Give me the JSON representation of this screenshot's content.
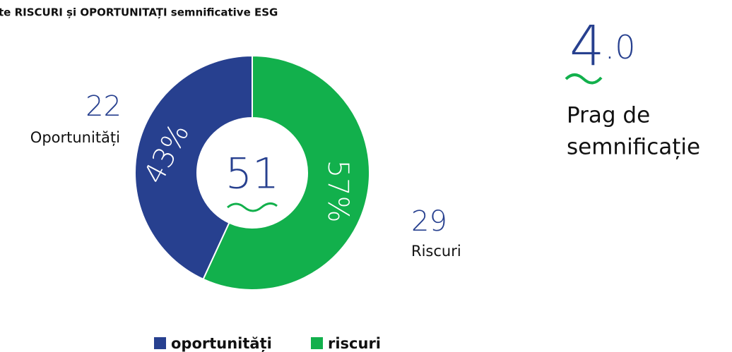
{
  "chart_data": {
    "type": "donut",
    "title": "te RISCURI și OPORTUNITAȚI semnificative ESG",
    "categories": [
      "oportunități",
      "riscuri"
    ],
    "labels": [
      "Oportunități",
      "Riscuri"
    ],
    "values": [
      22,
      29
    ],
    "colors": [
      "#27408f",
      "#12b04c"
    ],
    "percentage_labels": [
      "43%",
      "57%"
    ],
    "total": 51,
    "threshold": {
      "value": 4,
      "label": "4.0"
    },
    "threshold_caption": [
      "Prag de",
      "semnificație"
    ]
  }
}
